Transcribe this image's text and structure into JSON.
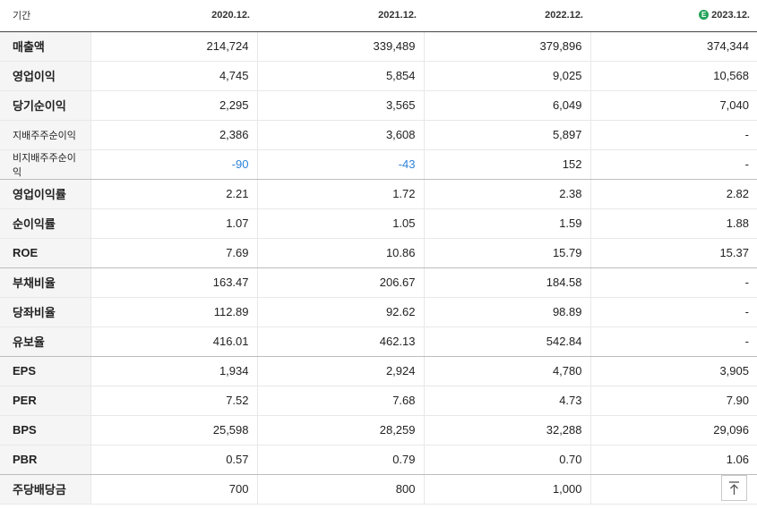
{
  "header": {
    "label": "기간",
    "periods": [
      "2020.12.",
      "2021.12.",
      "2022.12.",
      "2023.12."
    ],
    "estimate_badge": "E"
  },
  "rows": [
    {
      "label": "매출액",
      "values": [
        "214,724",
        "339,489",
        "379,896",
        "374,344"
      ]
    },
    {
      "label": "영업이익",
      "values": [
        "4,745",
        "5,854",
        "9,025",
        "10,568"
      ]
    },
    {
      "label": "당기순이익",
      "values": [
        "2,295",
        "3,565",
        "6,049",
        "7,040"
      ]
    },
    {
      "label": "지배주주순이익",
      "values": [
        "2,386",
        "3,608",
        "5,897",
        "-"
      ]
    },
    {
      "label": "비지배주주순이익",
      "values": [
        "-90",
        "-43",
        "152",
        "-"
      ]
    },
    {
      "label": "영업이익률",
      "values": [
        "2.21",
        "1.72",
        "2.38",
        "2.82"
      ]
    },
    {
      "label": "순이익률",
      "values": [
        "1.07",
        "1.05",
        "1.59",
        "1.88"
      ]
    },
    {
      "label": "ROE",
      "values": [
        "7.69",
        "10.86",
        "15.79",
        "15.37"
      ]
    },
    {
      "label": "부채비율",
      "values": [
        "163.47",
        "206.67",
        "184.58",
        "-"
      ]
    },
    {
      "label": "당좌비율",
      "values": [
        "112.89",
        "92.62",
        "98.89",
        "-"
      ]
    },
    {
      "label": "유보율",
      "values": [
        "416.01",
        "462.13",
        "542.84",
        "-"
      ]
    },
    {
      "label": "EPS",
      "values": [
        "1,934",
        "2,924",
        "4,780",
        "3,905"
      ]
    },
    {
      "label": "PER",
      "values": [
        "7.52",
        "7.68",
        "4.73",
        "7.90"
      ]
    },
    {
      "label": "BPS",
      "values": [
        "25,598",
        "28,259",
        "32,288",
        "29,096"
      ]
    },
    {
      "label": "PBR",
      "values": [
        "0.57",
        "0.79",
        "0.70",
        "1.06"
      ]
    },
    {
      "label": "주당배당금",
      "values": [
        "700",
        "800",
        "1,000",
        ""
      ]
    }
  ],
  "colors": {
    "negative": "#2f83d8",
    "estimate_badge": "#22a35a"
  },
  "scroll_top_icon": "arrow-up-to-line-icon"
}
